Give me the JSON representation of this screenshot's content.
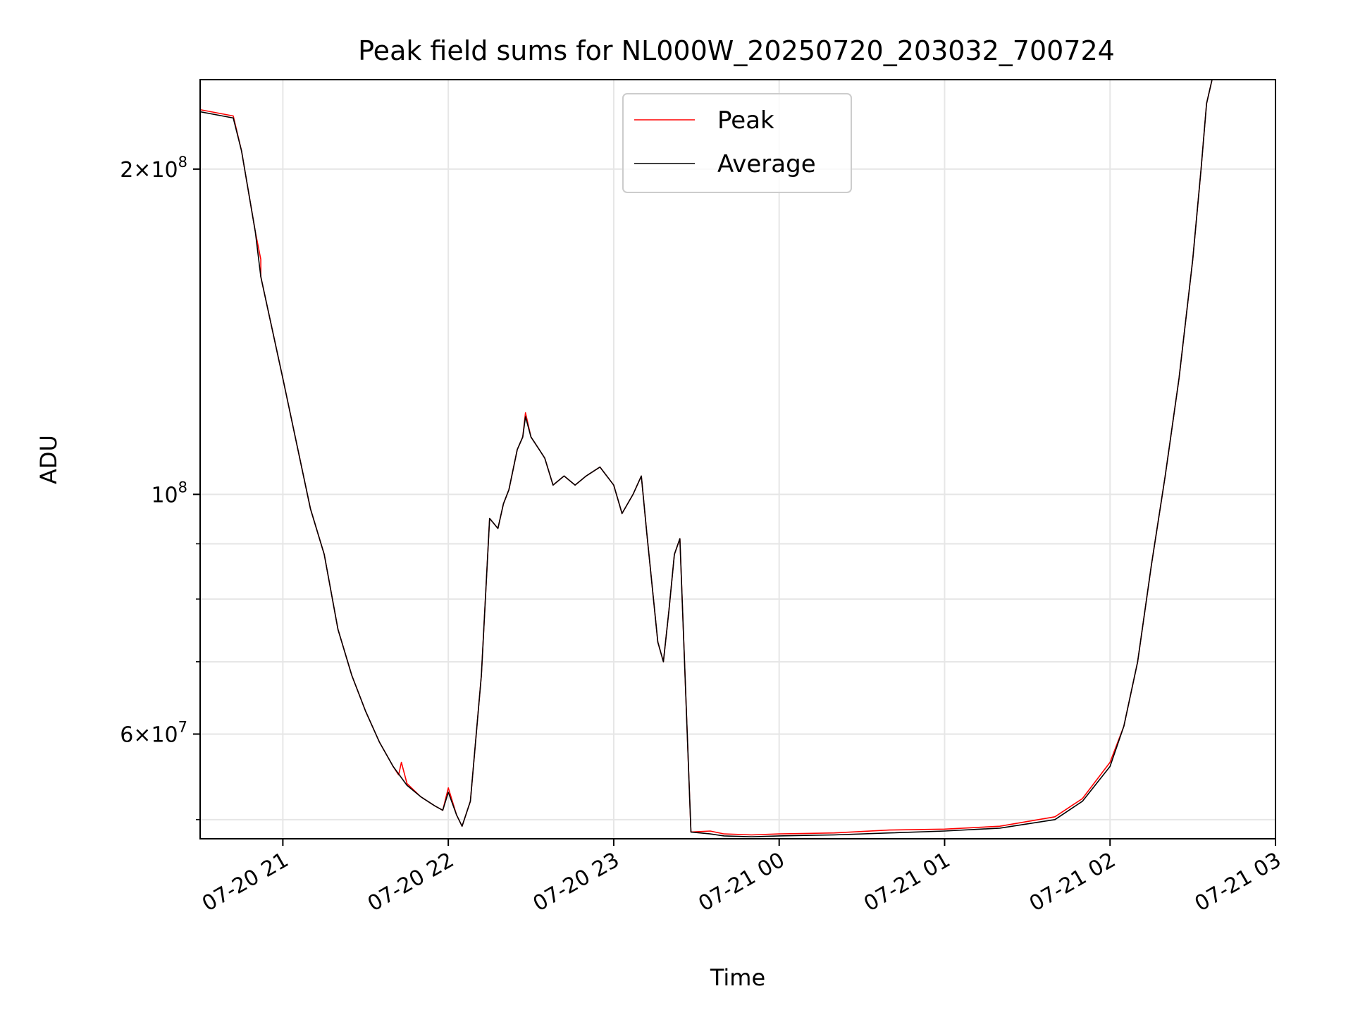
{
  "chart_data": {
    "type": "line",
    "title": "Peak field sums for NL000W_20250720_203032_700724",
    "xlabel": "Time",
    "ylabel": "ADU",
    "yscale": "log",
    "grid": true,
    "legend_position": "upper center",
    "x_tick_labels": [
      "07-20 21",
      "07-20 22",
      "07-20 23",
      "07-21 00",
      "07-21 01",
      "07-21 02",
      "07-21 03"
    ],
    "x_tick_values": [
      "2025-07-20 21:00",
      "2025-07-20 22:00",
      "2025-07-20 23:00",
      "2025-07-21 00:00",
      "2025-07-21 01:00",
      "2025-07-21 02:00",
      "2025-07-21 03:00"
    ],
    "xlim": [
      "2025-07-20 20:30",
      "2025-07-21 03:00"
    ],
    "ylim": [
      48000000,
      242000000
    ],
    "y_ticks": [
      {
        "value": 200000000,
        "mantissa": "2",
        "exponent": "8"
      },
      {
        "value": 100000000,
        "mantissa": "",
        "exponent": "8"
      },
      {
        "value": 60000000,
        "mantissa": "6",
        "exponent": "7"
      }
    ],
    "y_minor_ticks": [
      50000000,
      70000000,
      80000000,
      90000000
    ],
    "series": [
      {
        "name": "Peak",
        "color": "#ff0000",
        "points": [
          [
            "2025-07-20 20:30",
            227000000
          ],
          [
            "2025-07-20 20:42",
            224000000
          ],
          [
            "2025-07-20 20:45",
            208000000
          ],
          [
            "2025-07-20 20:50",
            175000000
          ],
          [
            "2025-07-20 20:52",
            165000000
          ],
          [
            "2025-07-20 20:52",
            159000000
          ],
          [
            "2025-07-20 21:00",
            128000000
          ],
          [
            "2025-07-20 21:10",
            97000000
          ],
          [
            "2025-07-20 21:15",
            88000000
          ],
          [
            "2025-07-20 21:20",
            75000000
          ],
          [
            "2025-07-20 21:25",
            68000000
          ],
          [
            "2025-07-20 21:30",
            63000000
          ],
          [
            "2025-07-20 21:35",
            59000000
          ],
          [
            "2025-07-20 21:40",
            56000000
          ],
          [
            "2025-07-20 21:42",
            55000000
          ],
          [
            "2025-07-20 21:43",
            56500000
          ],
          [
            "2025-07-20 21:45",
            54000000
          ],
          [
            "2025-07-20 21:50",
            52500000
          ],
          [
            "2025-07-20 21:55",
            51500000
          ],
          [
            "2025-07-20 21:58",
            51000000
          ],
          [
            "2025-07-20 22:00",
            53500000
          ],
          [
            "2025-07-20 22:03",
            50500000
          ],
          [
            "2025-07-20 22:05",
            49300000
          ],
          [
            "2025-07-20 22:08",
            52000000
          ],
          [
            "2025-07-20 22:12",
            68000000
          ],
          [
            "2025-07-20 22:15",
            95000000
          ],
          [
            "2025-07-20 22:18",
            93000000
          ],
          [
            "2025-07-20 22:20",
            98000000
          ],
          [
            "2025-07-20 22:22",
            101000000
          ],
          [
            "2025-07-20 22:25",
            110000000
          ],
          [
            "2025-07-20 22:27",
            113000000
          ],
          [
            "2025-07-20 22:28",
            119000000
          ],
          [
            "2025-07-20 22:30",
            113000000
          ],
          [
            "2025-07-20 22:33",
            110000000
          ],
          [
            "2025-07-20 22:35",
            108000000
          ],
          [
            "2025-07-20 22:38",
            102000000
          ],
          [
            "2025-07-20 22:42",
            104000000
          ],
          [
            "2025-07-20 22:46",
            102000000
          ],
          [
            "2025-07-20 22:50",
            104000000
          ],
          [
            "2025-07-20 22:55",
            106000000
          ],
          [
            "2025-07-20 23:00",
            102000000
          ],
          [
            "2025-07-20 23:03",
            96000000
          ],
          [
            "2025-07-20 23:07",
            100000000
          ],
          [
            "2025-07-20 23:10",
            104000000
          ],
          [
            "2025-07-20 23:12",
            92000000
          ],
          [
            "2025-07-20 23:16",
            73000000
          ],
          [
            "2025-07-20 23:18",
            70000000
          ],
          [
            "2025-07-20 23:20",
            78000000
          ],
          [
            "2025-07-20 23:22",
            88000000
          ],
          [
            "2025-07-20 23:24",
            91000000
          ],
          [
            "2025-07-20 23:28",
            48700000
          ],
          [
            "2025-07-20 23:35",
            48800000
          ],
          [
            "2025-07-20 23:40",
            48500000
          ],
          [
            "2025-07-20 23:50",
            48400000
          ],
          [
            "2025-07-21 00:00",
            48500000
          ],
          [
            "2025-07-21 00:20",
            48600000
          ],
          [
            "2025-07-21 00:40",
            48900000
          ],
          [
            "2025-07-21 01:00",
            49000000
          ],
          [
            "2025-07-21 01:20",
            49300000
          ],
          [
            "2025-07-21 01:40",
            50300000
          ],
          [
            "2025-07-21 01:50",
            52300000
          ],
          [
            "2025-07-21 02:00",
            56500000
          ],
          [
            "2025-07-21 02:05",
            61000000
          ],
          [
            "2025-07-21 02:10",
            70000000
          ],
          [
            "2025-07-21 02:15",
            86000000
          ],
          [
            "2025-07-21 02:20",
            104000000
          ],
          [
            "2025-07-21 02:25",
            128000000
          ],
          [
            "2025-07-21 02:30",
            165000000
          ],
          [
            "2025-07-21 02:33",
            200000000
          ],
          [
            "2025-07-21 02:35",
            230000000
          ],
          [
            "2025-07-21 02:37",
            242000000
          ]
        ]
      },
      {
        "name": "Average",
        "color": "#000000",
        "points": [
          [
            "2025-07-20 20:30",
            226000000
          ],
          [
            "2025-07-20 20:42",
            223000000
          ],
          [
            "2025-07-20 20:45",
            208000000
          ],
          [
            "2025-07-20 20:50",
            175000000
          ],
          [
            "2025-07-20 20:52",
            159000000
          ],
          [
            "2025-07-20 21:00",
            128000000
          ],
          [
            "2025-07-20 21:10",
            97000000
          ],
          [
            "2025-07-20 21:15",
            88000000
          ],
          [
            "2025-07-20 21:20",
            75000000
          ],
          [
            "2025-07-20 21:25",
            68000000
          ],
          [
            "2025-07-20 21:30",
            63000000
          ],
          [
            "2025-07-20 21:35",
            59000000
          ],
          [
            "2025-07-20 21:40",
            56000000
          ],
          [
            "2025-07-20 21:45",
            53800000
          ],
          [
            "2025-07-20 21:50",
            52500000
          ],
          [
            "2025-07-20 21:55",
            51500000
          ],
          [
            "2025-07-20 21:58",
            51000000
          ],
          [
            "2025-07-20 22:00",
            53000000
          ],
          [
            "2025-07-20 22:03",
            50500000
          ],
          [
            "2025-07-20 22:05",
            49300000
          ],
          [
            "2025-07-20 22:08",
            52000000
          ],
          [
            "2025-07-20 22:12",
            68000000
          ],
          [
            "2025-07-20 22:15",
            95000000
          ],
          [
            "2025-07-20 22:18",
            93000000
          ],
          [
            "2025-07-20 22:20",
            98000000
          ],
          [
            "2025-07-20 22:22",
            101000000
          ],
          [
            "2025-07-20 22:25",
            110000000
          ],
          [
            "2025-07-20 22:27",
            113000000
          ],
          [
            "2025-07-20 22:28",
            118000000
          ],
          [
            "2025-07-20 22:30",
            113000000
          ],
          [
            "2025-07-20 22:33",
            110000000
          ],
          [
            "2025-07-20 22:35",
            108000000
          ],
          [
            "2025-07-20 22:38",
            102000000
          ],
          [
            "2025-07-20 22:42",
            104000000
          ],
          [
            "2025-07-20 22:46",
            102000000
          ],
          [
            "2025-07-20 22:50",
            104000000
          ],
          [
            "2025-07-20 22:55",
            106000000
          ],
          [
            "2025-07-20 23:00",
            102000000
          ],
          [
            "2025-07-20 23:03",
            96000000
          ],
          [
            "2025-07-20 23:07",
            100000000
          ],
          [
            "2025-07-20 23:10",
            104000000
          ],
          [
            "2025-07-20 23:12",
            92000000
          ],
          [
            "2025-07-20 23:16",
            73000000
          ],
          [
            "2025-07-20 23:18",
            70000000
          ],
          [
            "2025-07-20 23:20",
            78000000
          ],
          [
            "2025-07-20 23:22",
            88000000
          ],
          [
            "2025-07-20 23:24",
            91000000
          ],
          [
            "2025-07-20 23:28",
            48700000
          ],
          [
            "2025-07-20 23:35",
            48500000
          ],
          [
            "2025-07-20 23:40",
            48300000
          ],
          [
            "2025-07-20 23:50",
            48200000
          ],
          [
            "2025-07-21 00:00",
            48300000
          ],
          [
            "2025-07-21 00:20",
            48400000
          ],
          [
            "2025-07-21 00:40",
            48600000
          ],
          [
            "2025-07-21 01:00",
            48800000
          ],
          [
            "2025-07-21 01:20",
            49100000
          ],
          [
            "2025-07-21 01:40",
            50000000
          ],
          [
            "2025-07-21 01:50",
            52000000
          ],
          [
            "2025-07-21 02:00",
            56000000
          ],
          [
            "2025-07-21 02:05",
            61000000
          ],
          [
            "2025-07-21 02:10",
            70000000
          ],
          [
            "2025-07-21 02:15",
            86000000
          ],
          [
            "2025-07-21 02:20",
            104000000
          ],
          [
            "2025-07-21 02:25",
            128000000
          ],
          [
            "2025-07-21 02:30",
            165000000
          ],
          [
            "2025-07-21 02:33",
            200000000
          ],
          [
            "2025-07-21 02:35",
            230000000
          ],
          [
            "2025-07-21 02:37",
            242000000
          ]
        ]
      }
    ]
  }
}
